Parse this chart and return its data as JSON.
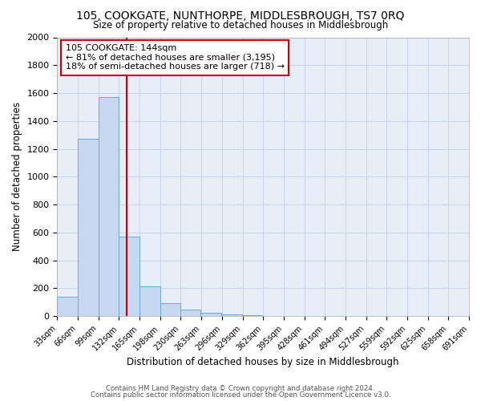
{
  "title": "105, COOKGATE, NUNTHORPE, MIDDLESBROUGH, TS7 0RQ",
  "subtitle": "Size of property relative to detached houses in Middlesbrough",
  "xlabel": "Distribution of detached houses by size in Middlesbrough",
  "ylabel": "Number of detached properties",
  "bin_starts": [
    33,
    66,
    99,
    132,
    165,
    198,
    230,
    263,
    296,
    329,
    362,
    395,
    428,
    461,
    494,
    527,
    559,
    592,
    625,
    658
  ],
  "bin_width": 33,
  "bar_heights": [
    140,
    1275,
    1570,
    570,
    215,
    95,
    50,
    25,
    10,
    5,
    2,
    1,
    0,
    0,
    0,
    0,
    0,
    0,
    0,
    0
  ],
  "bar_color": "#c5d8f0",
  "bar_edge_color": "#6aaad4",
  "tick_labels": [
    "33sqm",
    "66sqm",
    "99sqm",
    "132sqm",
    "165sqm",
    "198sqm",
    "230sqm",
    "263sqm",
    "296sqm",
    "329sqm",
    "362sqm",
    "395sqm",
    "428sqm",
    "461sqm",
    "494sqm",
    "527sqm",
    "559sqm",
    "592sqm",
    "625sqm",
    "658sqm",
    "691sqm"
  ],
  "vline_x": 144,
  "vline_color": "#cc0000",
  "ylim": [
    0,
    2000
  ],
  "yticks": [
    0,
    200,
    400,
    600,
    800,
    1000,
    1200,
    1400,
    1600,
    1800,
    2000
  ],
  "annotation_title": "105 COOKGATE: 144sqm",
  "annotation_line1": "← 81% of detached houses are smaller (3,195)",
  "annotation_line2": "18% of semi-detached houses are larger (718) →",
  "footer1": "Contains HM Land Registry data © Crown copyright and database right 2024.",
  "footer2": "Contains public sector information licensed under the Open Government Licence v3.0.",
  "bg_color": "#ffffff",
  "ax_bg_color": "#e8eef8",
  "grid_color": "#c8d4e8"
}
